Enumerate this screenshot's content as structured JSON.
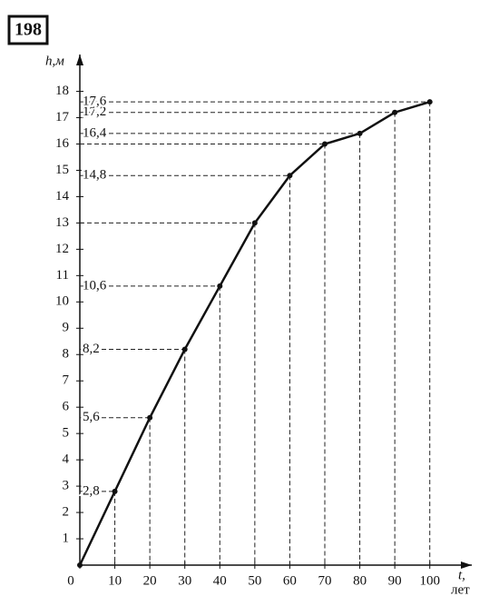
{
  "chart_data": {
    "type": "line",
    "badge": "198",
    "ylabel": "h,м",
    "xlabel": "t,",
    "xlabel_unit": "лет",
    "x": [
      0,
      10,
      20,
      30,
      40,
      50,
      60,
      70,
      80,
      90,
      100
    ],
    "values": [
      0,
      2.8,
      5.6,
      8.2,
      10.6,
      13,
      14.8,
      16,
      16.4,
      17.2,
      17.6
    ],
    "value_labels": [
      null,
      "2,8",
      "5,6",
      "8,2",
      "10,6",
      null,
      "14,8",
      null,
      "16,4",
      "17,2",
      "17,6"
    ],
    "color": "#111111",
    "xlim": [
      0,
      112
    ],
    "ylim": [
      0,
      19.4
    ],
    "xticks": [
      0,
      10,
      20,
      30,
      40,
      50,
      60,
      70,
      80,
      90,
      100
    ],
    "yticks": [
      1,
      2,
      3,
      4,
      5,
      6,
      7,
      8,
      9,
      10,
      11,
      12,
      13,
      14,
      15,
      16,
      17,
      18
    ],
    "dashed_guides": true
  }
}
